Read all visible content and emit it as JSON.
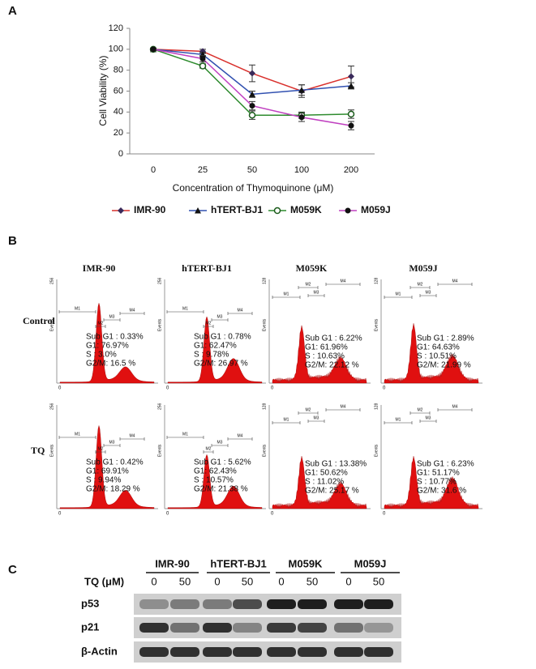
{
  "panel_labels": [
    "A",
    "B",
    "C"
  ],
  "chart_data": {
    "type": "line",
    "x_label": "Concentration of Thymoquinone (μM)",
    "y_label": "Cell Viability (%)",
    "categories": [
      "0",
      "25",
      "50",
      "100",
      "200"
    ],
    "ylim": [
      0,
      120
    ],
    "yticks": [
      0,
      20,
      40,
      60,
      80,
      100,
      120
    ],
    "series": [
      {
        "name": "IMR-90",
        "color": "#d9302c",
        "marker": "diamond",
        "marker_color": "#3a2a5a",
        "values": [
          100,
          98,
          77,
          60,
          74
        ],
        "errors": [
          1,
          2,
          8,
          6,
          10
        ]
      },
      {
        "name": "hTERT-BJ1",
        "color": "#3050b0",
        "marker": "triangle",
        "marker_color": "#111111",
        "values": [
          100,
          95,
          57,
          61,
          65
        ],
        "errors": [
          1,
          2,
          3,
          5,
          3
        ]
      },
      {
        "name": "M059K",
        "color": "#2e8b2e",
        "marker": "circle-open",
        "marker_color": "#1a5a1a",
        "values": [
          100,
          84,
          37,
          37,
          38
        ],
        "errors": [
          1,
          2,
          4,
          3,
          4
        ]
      },
      {
        "name": "M059J",
        "color": "#c040c0",
        "marker": "circle",
        "marker_color": "#111111",
        "values": [
          100,
          91,
          46,
          35,
          27
        ],
        "errors": [
          1,
          3,
          4,
          4,
          4
        ]
      }
    ]
  },
  "histograms": {
    "columns": [
      "IMR-90",
      "hTERT-BJ1",
      "M059K",
      "M059J"
    ],
    "rows": [
      "Control",
      "TQ"
    ],
    "y_max_labels": [
      "256",
      "256",
      "128",
      "128"
    ],
    "y_axis_label": "Events",
    "origin": "0",
    "markers": [
      "M1",
      "M2",
      "M3",
      "M4"
    ],
    "stats": [
      [
        [
          "Sub G1 : 0.33%",
          "G1: 76.97%",
          "S : 3.0%",
          "G2/M: 16.5 %"
        ],
        [
          "Sub G1 : 0.78%",
          "G1: 62.47%",
          "S : 9.78%",
          "G2/M: 26.97 %"
        ],
        [
          "Sub G1 : 6.22%",
          "G1: 61.96%",
          "S : 10.63%",
          "G2/M: 22.12 %"
        ],
        [
          "Sub G1 : 2.89%",
          "G1: 64.63%",
          "S : 10.51%",
          "G2/M: 21.99 %"
        ]
      ],
      [
        [
          "Sub G1 : 0.42%",
          "G1: 69.91%",
          "S : 9.94%",
          "G2/M: 18.29 %"
        ],
        [
          "Sub G1 : 5.62%",
          "G1: 62.43%",
          "S : 10.57%",
          "G2/M: 21.38 %"
        ],
        [
          "Sub G1 : 13.38%",
          "G1: 50.62%",
          "S : 11.02%",
          "G2/M: 25.17 %"
        ],
        [
          "Sub G1 : 6.23%",
          "G1: 51.17%",
          "S : 10.77%",
          "G2/M: 31.6 %"
        ]
      ]
    ]
  },
  "blot": {
    "groups": [
      "IMR-90",
      "hTERT-BJ1",
      "M059K",
      "M059J"
    ],
    "treatment_label": "TQ (μM)",
    "doses": [
      "0",
      "50",
      "0",
      "50",
      "0",
      "50",
      "0",
      "50"
    ],
    "proteins": [
      "p53",
      "p21",
      "β-Actin"
    ]
  }
}
